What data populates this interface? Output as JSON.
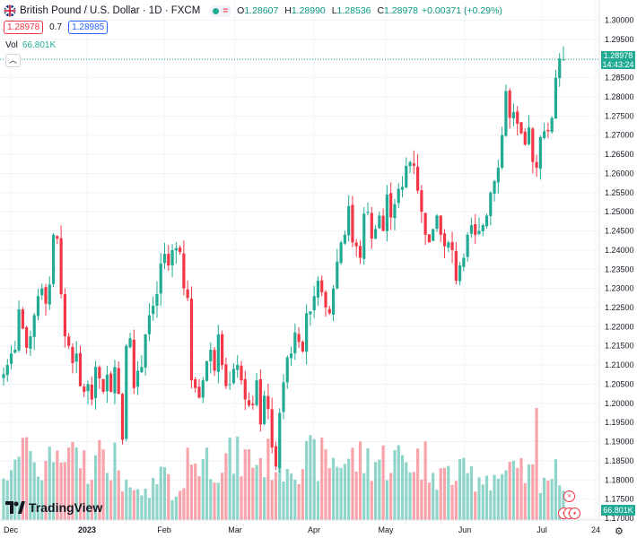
{
  "header": {
    "title": "British Pound / U.S. Dollar · 1D · FXCM",
    "ohlc": [
      {
        "label": "O",
        "value": "1.28607"
      },
      {
        "label": "H",
        "value": "1.28990"
      },
      {
        "label": "L",
        "value": "1.28536"
      },
      {
        "label": "C",
        "value": "1.28978"
      }
    ],
    "change": "+0.00371 (+0.29%)",
    "status_colors": {
      "up": "#089981",
      "down": "#f23645"
    }
  },
  "quote": {
    "bid": "1.28978",
    "spread": "0.7",
    "ask": "1.28985"
  },
  "volume": {
    "label": "Vol",
    "value": "66.801K"
  },
  "brand": "TradingView",
  "price_badge": {
    "price": "1.28978",
    "countdown": "14:43:24"
  },
  "volume_badge": "66.801K",
  "chart_data": {
    "type": "candlestick",
    "series": "GBP/USD daily",
    "y_axis": {
      "range": [
        1.17,
        1.302
      ],
      "ticks": [
        "1.30000",
        "1.29500",
        "1.29000",
        "1.28500",
        "1.28000",
        "1.27500",
        "1.27000",
        "1.26500",
        "1.26000",
        "1.25500",
        "1.25000",
        "1.24500",
        "1.24000",
        "1.23500",
        "1.23000",
        "1.22500",
        "1.22000",
        "1.21500",
        "1.21000",
        "1.20500",
        "1.20000",
        "1.19500",
        "1.19000",
        "1.18500",
        "1.18000",
        "1.17500",
        "1.17000"
      ]
    },
    "x_axis": {
      "ticks": [
        "Dec",
        "2023",
        "Feb",
        "Mar",
        "Apr",
        "May",
        "Jun",
        "Jul",
        "24"
      ],
      "bold": [
        "2023"
      ]
    },
    "last_price": 1.28978,
    "ohlc_closes": [
      1.2076,
      1.21,
      1.213,
      1.214,
      1.2245,
      1.2195,
      1.2145,
      1.2175,
      1.223,
      1.228,
      1.23,
      1.226,
      1.231,
      1.244,
      1.243,
      1.2285,
      1.2175,
      1.215,
      1.2105,
      1.213,
      1.2045,
      1.203,
      1.205,
      1.201,
      1.2095,
      1.2065,
      1.203,
      1.2075,
      1.203,
      1.2095,
      1.2025,
      1.1905,
      1.215,
      1.217,
      1.204,
      1.2085,
      1.2095,
      1.218,
      1.223,
      1.2255,
      1.2285,
      1.2365,
      1.239,
      1.236,
      1.24,
      1.2405,
      1.2395,
      1.23,
      1.2275,
      1.206,
      1.204,
      1.2015,
      1.206,
      1.211,
      1.214,
      1.2085,
      1.218,
      1.21,
      1.2045,
      1.205,
      1.209,
      1.21,
      1.206,
      1.201,
      1.1995,
      1.1995,
      1.206,
      1.1945,
      1.202,
      1.1985,
      1.1885,
      1.1835,
      1.1975,
      1.2055,
      1.212,
      1.213,
      1.2185,
      1.216,
      1.2135,
      1.2235,
      1.224,
      1.228,
      1.232,
      1.229,
      1.225,
      1.2235,
      1.23,
      1.237,
      1.242,
      1.244,
      1.2515,
      1.242,
      1.241,
      1.238,
      1.2495,
      1.25,
      1.243,
      1.2455,
      1.249,
      1.245,
      1.2545,
      1.2485,
      1.252,
      1.256,
      1.2565,
      1.262,
      1.263,
      1.262,
      1.2555,
      1.25,
      1.244,
      1.242,
      1.2455,
      1.249,
      1.244,
      1.241,
      1.242,
      1.24,
      1.232,
      1.236,
      1.238,
      1.244,
      1.2465,
      1.244,
      1.245,
      1.2465,
      1.249,
      1.255,
      1.258,
      1.2615,
      1.27,
      1.2815,
      1.2745,
      1.276,
      1.273,
      1.2705,
      1.2675,
      1.272,
      1.263,
      1.2615,
      1.2695,
      1.271,
      1.271,
      1.2745,
      1.285,
      1.29,
      1.28978
    ]
  }
}
